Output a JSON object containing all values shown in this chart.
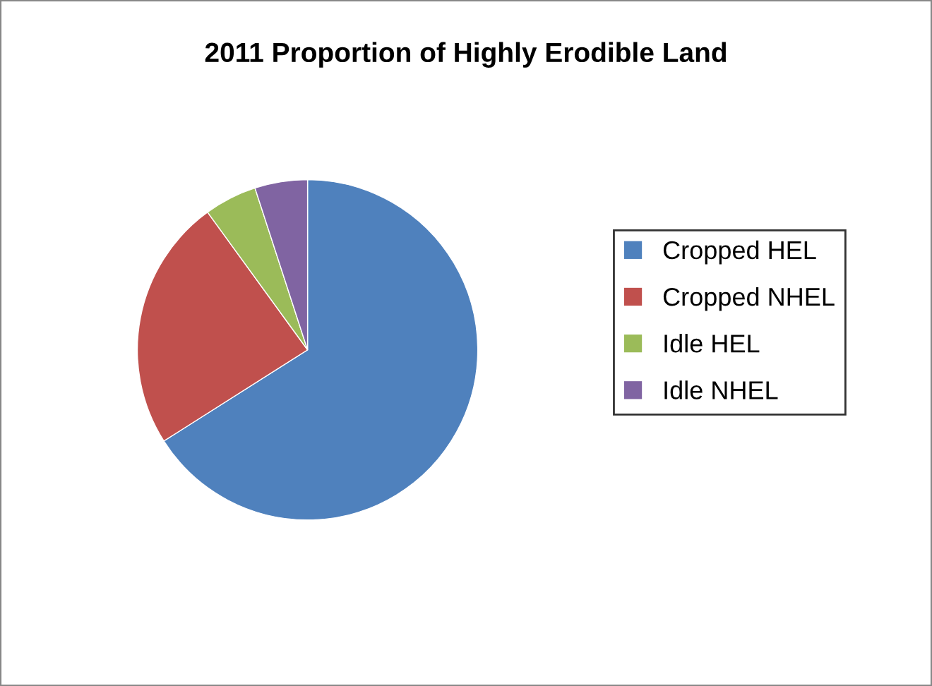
{
  "chart_data": {
    "type": "pie",
    "title": "2011 Proportion of Highly Erodible Land",
    "categories": [
      "Cropped HEL",
      "Cropped NHEL",
      "Idle HEL",
      "Idle NHEL"
    ],
    "values": [
      66,
      24,
      5,
      5
    ],
    "colors": [
      "#4f81bd",
      "#c0504d",
      "#9bbb59",
      "#8064a2"
    ],
    "legend": "right"
  }
}
